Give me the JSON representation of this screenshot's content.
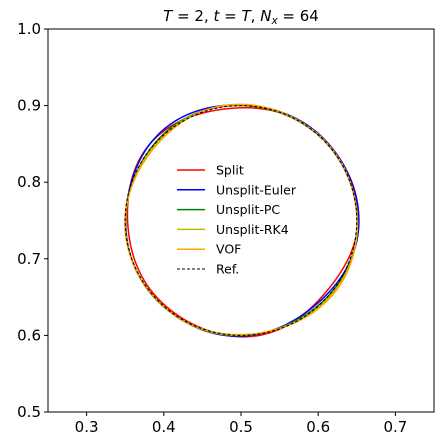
{
  "chart_data": {
    "type": "line",
    "title": {
      "parts": [
        {
          "text": "T",
          "style": "italic"
        },
        {
          "text": " = 2, ",
          "style": "normal"
        },
        {
          "text": "t",
          "style": "italic"
        },
        {
          "text": " = ",
          "style": "normal"
        },
        {
          "text": "T",
          "style": "italic"
        },
        {
          "text": ", ",
          "style": "normal"
        },
        {
          "text": "N",
          "style": "italic"
        },
        {
          "text": "x",
          "style": "italic-sub"
        },
        {
          "text": " = 64",
          "style": "normal"
        }
      ]
    },
    "xlabel": "",
    "ylabel": "",
    "xlim": [
      0.25,
      0.75
    ],
    "ylim": [
      0.5,
      1.0
    ],
    "xticks": [
      0.3,
      0.4,
      0.5,
      0.6,
      0.7
    ],
    "xtick_labels": [
      "0.3",
      "0.4",
      "0.5",
      "0.6",
      "0.7"
    ],
    "yticks": [
      0.5,
      0.6,
      0.7,
      0.8,
      0.9,
      1.0
    ],
    "ytick_labels": [
      "0.5",
      "0.6",
      "0.7",
      "0.8",
      "0.9",
      "1.0"
    ],
    "grid": false,
    "legend_position": "center",
    "series": [
      {
        "name": "Split",
        "color": "#ff0000",
        "dash": "solid",
        "cx": 0.5,
        "cy": 0.751,
        "r": 0.1495,
        "wobble": 0.003,
        "phase": 0.4
      },
      {
        "name": "Unsplit-Euler",
        "color": "#0000ff",
        "dash": "solid",
        "cx": 0.4995,
        "cy": 0.7515,
        "r": 0.151,
        "wobble": 0.002,
        "phase": 1.2
      },
      {
        "name": "Unsplit-PC",
        "color": "#008000",
        "dash": "solid",
        "cx": 0.5,
        "cy": 0.75,
        "r": 0.1502,
        "wobble": 0.001,
        "phase": 2.0
      },
      {
        "name": "Unsplit-RK4",
        "color": "#bfbf00",
        "dash": "solid",
        "cx": 0.5005,
        "cy": 0.7498,
        "r": 0.1503,
        "wobble": 0.001,
        "phase": 2.7
      },
      {
        "name": "VOF",
        "color": "#ffa500",
        "dash": "solid",
        "cx": 0.501,
        "cy": 0.7497,
        "r": 0.1503,
        "wobble": 0.0015,
        "phase": 3.3
      },
      {
        "name": "Ref.",
        "color": "#000000",
        "dash": "dashed",
        "cx": 0.5,
        "cy": 0.75,
        "r": 0.15,
        "wobble": 0.0,
        "phase": 0.0
      }
    ]
  }
}
